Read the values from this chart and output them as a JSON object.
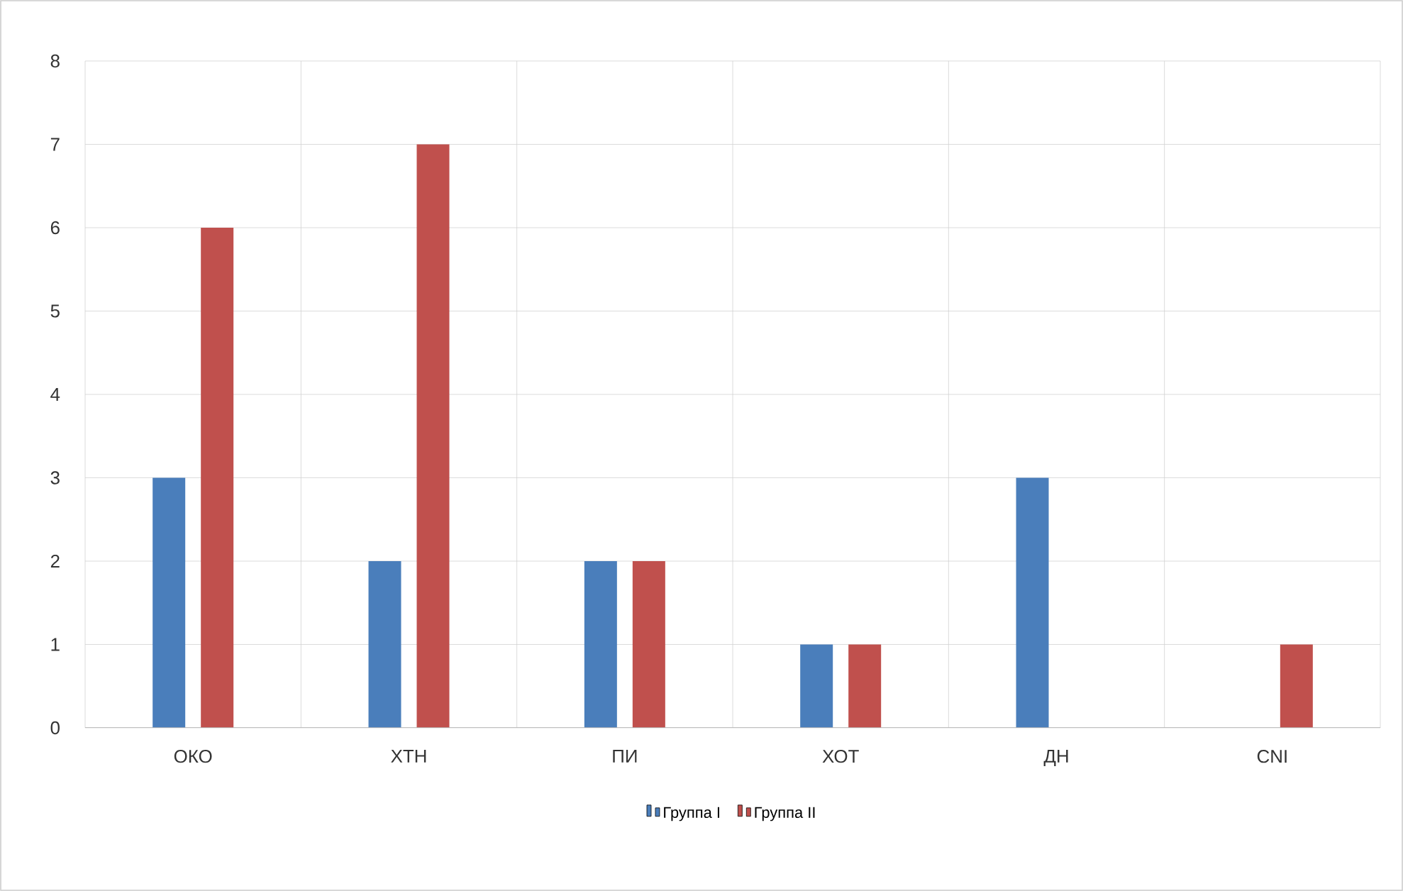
{
  "chart_data": {
    "type": "bar",
    "categories": [
      "ОКО",
      "ХТН",
      "ПИ",
      "ХОТ",
      "ДН",
      "CNI"
    ],
    "series": [
      {
        "name": "Группа I",
        "color": "#4a7ebb",
        "values": [
          3,
          2,
          2,
          1,
          3,
          0
        ]
      },
      {
        "name": "Группа II",
        "color": "#c0504d",
        "values": [
          6,
          7,
          2,
          1,
          0,
          1
        ]
      }
    ],
    "ylim": [
      0,
      8
    ],
    "yticks": [
      0,
      1,
      2,
      3,
      4,
      5,
      6,
      7,
      8
    ],
    "grid": true,
    "legend": "bottom"
  }
}
